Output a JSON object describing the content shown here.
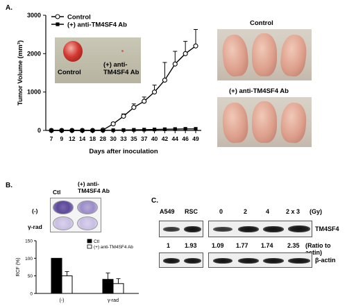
{
  "panel_a": {
    "letter": "A.",
    "photo_control_label": "Control",
    "photo_treated_label": "(+) anti-\nTM4SF4 Ab",
    "mice_control_label": "Control",
    "mice_treated_label": "(+) anti-TM4SF4 Ab"
  },
  "panel_b": {
    "letter": "B.",
    "col_ctl": "Ctl",
    "col_treated": "(+) anti-\nTM4SF4 Ab",
    "row_minus": "(-)",
    "row_rad": "γ-rad"
  },
  "panel_c": {
    "letter": "C.",
    "lane_labels": [
      "A549",
      "RSC",
      "0",
      "2",
      "4",
      "2 x 3"
    ],
    "gy_label": "(Gy)",
    "band_label_top": "TM4SF4",
    "band_label_bottom": "β-actin",
    "ratios": [
      "1",
      "1.93",
      "1.09",
      "1.77",
      "1.74",
      "2.35"
    ],
    "ratio_label": "(Ratio to actin)"
  },
  "chart_data": [
    {
      "type": "line",
      "xlabel": "Days after inoculation",
      "ylabel": "Tumor Volume (mm³)",
      "x": [
        7,
        9,
        12,
        14,
        18,
        28,
        30,
        33,
        35,
        37,
        40,
        42,
        44,
        46,
        49
      ],
      "ylim": [
        0,
        3000
      ],
      "yticks": [
        0,
        1000,
        2000,
        3000
      ],
      "legend_position": "top-left",
      "series": [
        {
          "name": "Control",
          "marker": "open-circle",
          "values": [
            0,
            0,
            0,
            0,
            0,
            10,
            170,
            370,
            600,
            760,
            1000,
            1310,
            1730,
            2000,
            2200
          ],
          "errors": [
            0,
            0,
            0,
            0,
            0,
            10,
            40,
            60,
            90,
            110,
            180,
            460,
            330,
            320,
            430
          ]
        },
        {
          "name": "(+) anti-TM4SF4 Ab",
          "marker": "filled-square",
          "values": [
            0,
            0,
            0,
            0,
            0,
            0,
            5,
            10,
            15,
            20,
            25,
            30,
            35,
            40,
            40
          ],
          "errors": [
            0,
            0,
            0,
            0,
            0,
            0,
            3,
            3,
            3,
            3,
            4,
            4,
            4,
            4,
            4
          ]
        }
      ]
    },
    {
      "type": "bar",
      "ylabel": "RCF (%)",
      "categories": [
        "(-)",
        "γ-rad"
      ],
      "ylim": [
        0,
        150
      ],
      "yticks": [
        0,
        50,
        100,
        150
      ],
      "legend_position": "top-right",
      "series": [
        {
          "name": "Ctl",
          "fill": "#000000",
          "values": [
            100,
            40
          ],
          "errors": [
            0,
            18
          ]
        },
        {
          "name": "(+) anti-TM4SF4 Ab",
          "fill": "#ffffff",
          "values": [
            50,
            28
          ],
          "errors": [
            12,
            14
          ]
        }
      ]
    }
  ]
}
